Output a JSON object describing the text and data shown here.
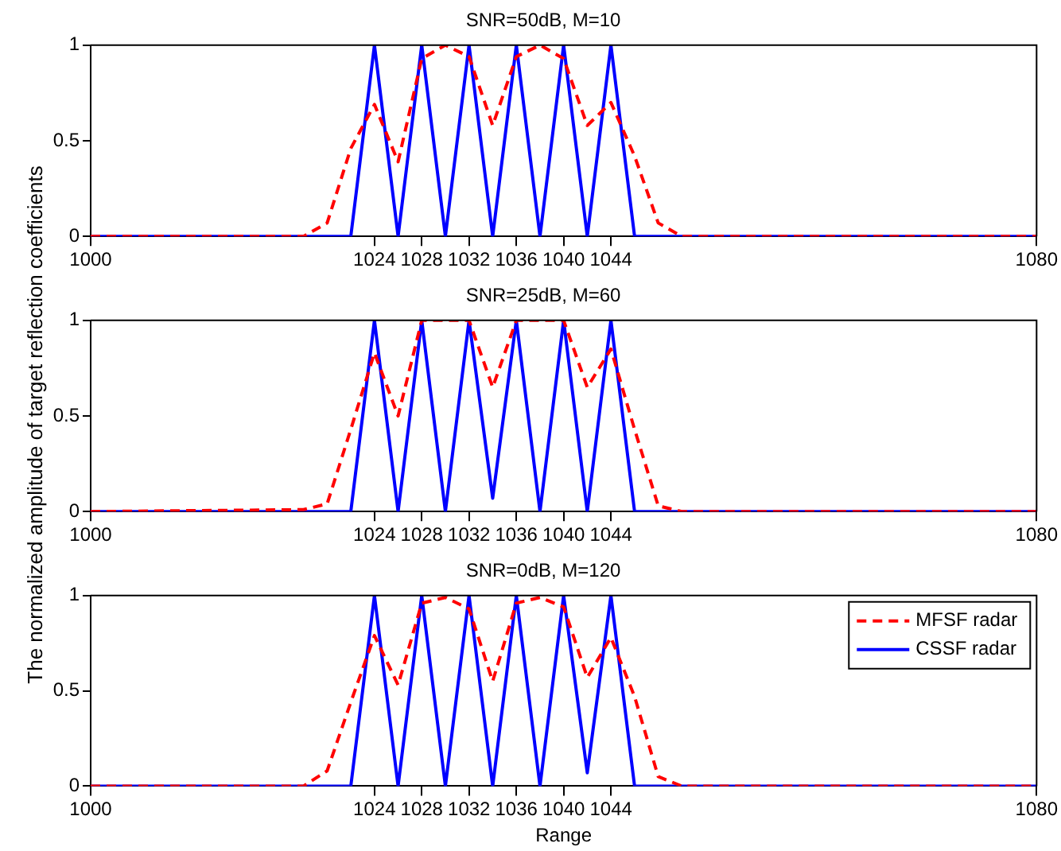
{
  "chart_data": [
    {
      "type": "line",
      "title": "SNR=50dB, M=10",
      "xlim": [
        1000,
        1080
      ],
      "xticks": [
        1000,
        1024,
        1028,
        1032,
        1036,
        1040,
        1044,
        1080
      ],
      "ylim": [
        0,
        1
      ],
      "yticks": [
        0,
        0.5,
        1
      ],
      "grid": false,
      "legend": false,
      "series": [
        {
          "color": "#ff0000",
          "line_style": "dashed",
          "x": [
            1000,
            1018,
            1020,
            1022,
            1024,
            1026,
            1028,
            1030,
            1032,
            1034,
            1036,
            1038,
            1040,
            1042,
            1044,
            1046,
            1048,
            1050,
            1080
          ],
          "values": [
            0,
            0,
            0.07,
            0.46,
            0.69,
            0.39,
            0.93,
            1,
            0.94,
            0.58,
            0.94,
            1,
            0.93,
            0.58,
            0.7,
            0.42,
            0.07,
            0,
            0
          ]
        },
        {
          "color": "#0000ff",
          "line_style": "solid",
          "x": [
            1000,
            1022,
            1024,
            1026,
            1028,
            1030,
            1032,
            1034,
            1036,
            1038,
            1040,
            1042,
            1044,
            1046,
            1080
          ],
          "values": [
            0,
            0,
            1,
            0,
            1,
            0,
            1,
            0,
            1,
            0,
            1,
            0,
            1,
            0,
            0
          ]
        }
      ]
    },
    {
      "type": "line",
      "title": "SNR=25dB, M=60",
      "ylabel": "The normalized amplitude of target reflection coefficients",
      "xlim": [
        1000,
        1080
      ],
      "xticks": [
        1000,
        1024,
        1028,
        1032,
        1036,
        1040,
        1044,
        1080
      ],
      "ylim": [
        0,
        1
      ],
      "yticks": [
        0,
        0.5,
        1
      ],
      "grid": false,
      "legend": false,
      "series": [
        {
          "color": "#ff0000",
          "line_style": "dashed",
          "x": [
            1000,
            1018,
            1020,
            1022,
            1024,
            1026,
            1028,
            1030,
            1032,
            1034,
            1036,
            1038,
            1040,
            1042,
            1044,
            1046,
            1048,
            1050,
            1080
          ],
          "values": [
            0,
            0.01,
            0.04,
            0.43,
            0.83,
            0.5,
            1,
            1,
            1,
            0.65,
            1,
            1,
            1,
            0.65,
            0.85,
            0.43,
            0.03,
            0,
            0
          ]
        },
        {
          "color": "#0000ff",
          "line_style": "solid",
          "x": [
            1000,
            1022,
            1024,
            1026,
            1028,
            1030,
            1032,
            1034,
            1036,
            1038,
            1040,
            1042,
            1044,
            1046,
            1080
          ],
          "values": [
            0,
            0,
            1,
            0,
            1,
            0,
            1,
            0.07,
            1,
            0,
            1,
            0,
            1,
            0,
            0
          ]
        }
      ]
    },
    {
      "type": "line",
      "title": "SNR=0dB, M=120",
      "xlabel": "Range",
      "xlim": [
        1000,
        1080
      ],
      "xticks": [
        1000,
        1024,
        1028,
        1032,
        1036,
        1040,
        1044,
        1080
      ],
      "ylim": [
        0,
        1
      ],
      "yticks": [
        0,
        0.5,
        1
      ],
      "grid": false,
      "legend": "top right",
      "series": [
        {
          "name": "MFSF radar",
          "color": "#ff0000",
          "line_style": "dashed",
          "x": [
            1000,
            1018,
            1020,
            1022,
            1024,
            1026,
            1028,
            1030,
            1032,
            1034,
            1036,
            1038,
            1040,
            1042,
            1044,
            1046,
            1048,
            1050,
            1080
          ],
          "values": [
            0,
            0,
            0.08,
            0.44,
            0.79,
            0.53,
            0.96,
            0.99,
            0.93,
            0.55,
            0.96,
            0.99,
            0.94,
            0.57,
            0.78,
            0.47,
            0.05,
            0,
            0
          ]
        },
        {
          "name": "CSSF radar",
          "color": "#0000ff",
          "line_style": "solid",
          "x": [
            1000,
            1022,
            1024,
            1026,
            1028,
            1030,
            1032,
            1034,
            1036,
            1038,
            1040,
            1042,
            1044,
            1046,
            1080
          ],
          "values": [
            0,
            0,
            1,
            0,
            1,
            0,
            1,
            0,
            1,
            0,
            1,
            0.07,
            1,
            0,
            0
          ]
        }
      ]
    }
  ]
}
